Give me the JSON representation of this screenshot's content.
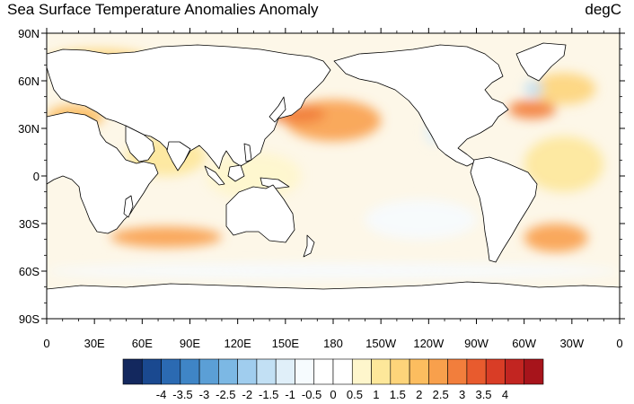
{
  "title": "Sea Surface Temperature Anomalies Anomaly",
  "units": "degC",
  "map": {
    "projection": "cylindrical-equidistant",
    "lon_range": [
      0,
      360
    ],
    "lat_range": [
      -90,
      90
    ],
    "lat_ticks": [
      {
        "value": 90,
        "label": "90N"
      },
      {
        "value": 60,
        "label": "60N"
      },
      {
        "value": 30,
        "label": "30N"
      },
      {
        "value": 0,
        "label": "0"
      },
      {
        "value": -30,
        "label": "30S"
      },
      {
        "value": -60,
        "label": "60S"
      },
      {
        "value": -90,
        "label": "90S"
      }
    ],
    "lon_ticks": [
      {
        "value": 0,
        "label": "0"
      },
      {
        "value": 30,
        "label": "30E"
      },
      {
        "value": 60,
        "label": "60E"
      },
      {
        "value": 90,
        "label": "90E"
      },
      {
        "value": 120,
        "label": "120E"
      },
      {
        "value": 150,
        "label": "150E"
      },
      {
        "value": 180,
        "label": "180"
      },
      {
        "value": 210,
        "label": "150W"
      },
      {
        "value": 240,
        "label": "120W"
      },
      {
        "value": 270,
        "label": "90W"
      },
      {
        "value": 300,
        "label": "60W"
      },
      {
        "value": 330,
        "label": "30W"
      },
      {
        "value": 360,
        "label": "0"
      }
    ],
    "land_color": "#ffffff",
    "coastline_color": "#000000"
  },
  "colorbar": {
    "labels": [
      "-4",
      "-3.5",
      "-3",
      "-2.5",
      "-2",
      "-1.5",
      "-1",
      "-0.5",
      "0",
      "0.5",
      "1",
      "1.5",
      "2",
      "2.5",
      "3",
      "3.5",
      "4"
    ],
    "colors": [
      "#13285e",
      "#1a4990",
      "#2b6ab2",
      "#3f85c6",
      "#5b9fd6",
      "#7cb8e4",
      "#a0cdee",
      "#c2e0f4",
      "#e0eff9",
      "#f6fbfe",
      "#ffffff",
      "#ffffff",
      "#fef6cc",
      "#fde79a",
      "#fdd47a",
      "#fcbd5f",
      "#f8a04c",
      "#f27e3c",
      "#e85b2e",
      "#d93d26",
      "#c22521",
      "#a7141b"
    ]
  },
  "anomaly_regions": [
    {
      "name": "north-pacific-warm-blob",
      "lon": [
        150,
        210
      ],
      "lat": [
        22,
        48
      ],
      "value": 2.6
    },
    {
      "name": "kuroshio-extension",
      "lon": [
        140,
        175
      ],
      "lat": [
        33,
        45
      ],
      "value": 3.5
    },
    {
      "name": "south-indian-ocean-band",
      "lon": [
        40,
        110
      ],
      "lat": [
        -45,
        -32
      ],
      "value": 2.8
    },
    {
      "name": "north-atlantic-gulf-stream",
      "lon": [
        290,
        320
      ],
      "lat": [
        36,
        48
      ],
      "value": 3.2
    },
    {
      "name": "north-atlantic-subpolar",
      "lon": [
        305,
        345
      ],
      "lat": [
        45,
        65
      ],
      "value": 2.0
    },
    {
      "name": "south-atlantic-brazil-malvinas",
      "lon": [
        300,
        340
      ],
      "lat": [
        -48,
        -30
      ],
      "value": 2.8
    },
    {
      "name": "tropical-atlantic",
      "lon": [
        300,
        350
      ],
      "lat": [
        -10,
        25
      ],
      "value": 1.3
    },
    {
      "name": "arabian-sea-bay-of-bengal",
      "lon": [
        50,
        100
      ],
      "lat": [
        0,
        25
      ],
      "value": 1.5
    },
    {
      "name": "mediterranean",
      "lon": [
        0,
        36
      ],
      "lat": [
        30,
        45
      ],
      "value": 2.2
    },
    {
      "name": "barents-kara",
      "lon": [
        0,
        65
      ],
      "lat": [
        66,
        80
      ],
      "value": 2.0
    },
    {
      "name": "maritime-continent",
      "lon": [
        100,
        160
      ],
      "lat": [
        -15,
        15
      ],
      "value": 1.0
    },
    {
      "name": "southern-ocean-cool",
      "lon": [
        0,
        360
      ],
      "lat": [
        -65,
        -55
      ],
      "value": -0.7
    },
    {
      "name": "east-pacific-cool-tongue",
      "lon": [
        200,
        270
      ],
      "lat": [
        -40,
        -15
      ],
      "value": -0.6
    },
    {
      "name": "california-coast-cool",
      "lon": [
        238,
        248
      ],
      "lat": [
        20,
        35
      ],
      "value": -1.2
    },
    {
      "name": "labrador-cool",
      "lon": [
        300,
        312
      ],
      "lat": [
        50,
        60
      ],
      "value": -1.5
    }
  ]
}
